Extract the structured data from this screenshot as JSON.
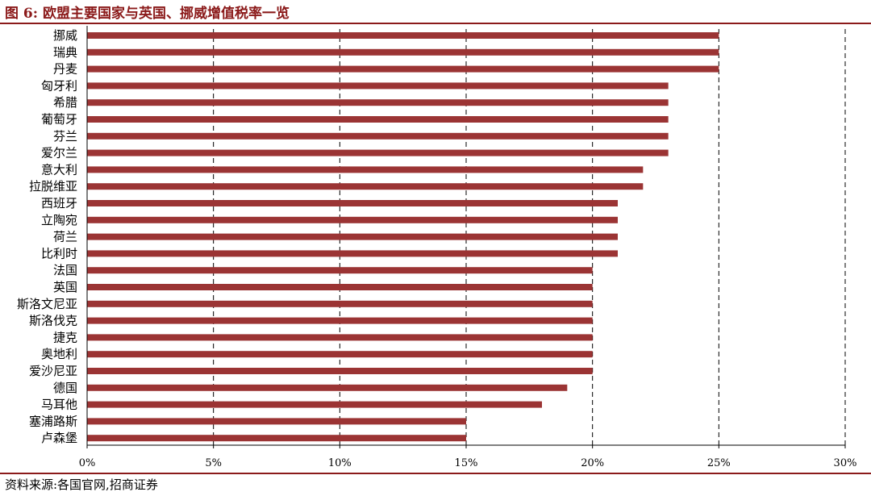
{
  "header": {
    "figure_label": "图 6:",
    "title": "欧盟主要国家与英国、挪威增值税率一览"
  },
  "footer": {
    "source": "资料来源:各国官网,招商证券"
  },
  "colors": {
    "bar": "#9B3434",
    "accent": "#8B1A1A"
  },
  "chart_data": {
    "type": "bar",
    "orientation": "horizontal",
    "categories": [
      "挪威",
      "瑞典",
      "丹麦",
      "匈牙利",
      "希腊",
      "葡萄牙",
      "芬兰",
      "爱尔兰",
      "意大利",
      "拉脱维亚",
      "西班牙",
      "立陶宛",
      "荷兰",
      "比利时",
      "法国",
      "英国",
      "斯洛文尼亚",
      "斯洛伐克",
      "捷克",
      "奥地利",
      "爱沙尼亚",
      "德国",
      "马耳他",
      "塞浦路斯",
      "卢森堡"
    ],
    "values": [
      25,
      25,
      25,
      23,
      23,
      23,
      23,
      23,
      22,
      22,
      21,
      21,
      21,
      21,
      20,
      20,
      20,
      20,
      20,
      20,
      20,
      19,
      18,
      15,
      15
    ],
    "xlim": [
      0,
      30
    ],
    "ticks": [
      0,
      5,
      10,
      15,
      20,
      25,
      30
    ],
    "tick_labels": [
      "0%",
      "5%",
      "10%",
      "15%",
      "20%",
      "25%",
      "30%"
    ],
    "grid": "dashed-vertical",
    "legend": "none"
  }
}
